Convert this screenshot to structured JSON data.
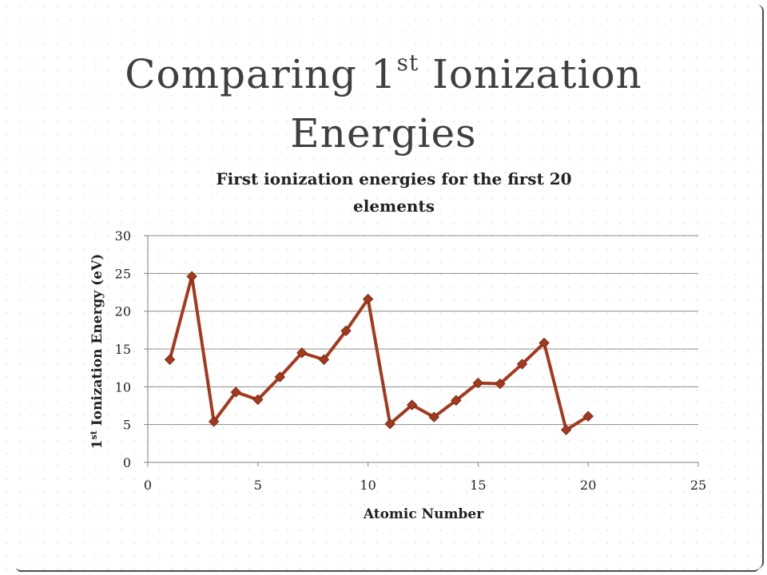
{
  "slide": {
    "title_line1_pre": "Comparing 1",
    "title_line1_sup": "st",
    "title_line1_post": " Ionization",
    "title_line2": "Energies"
  },
  "chart_data": {
    "type": "scatter",
    "title": "First ionization energies for the first 20 elements",
    "xlabel": "Atomic Number",
    "ylabel_pre": "1",
    "ylabel_sup": "st",
    "ylabel_post": " Ionization Energy (eV)",
    "xlim": [
      0,
      25
    ],
    "ylim": [
      0,
      30
    ],
    "x_ticks": [
      0,
      5,
      10,
      15,
      20,
      25
    ],
    "y_ticks": [
      0,
      5,
      10,
      15,
      20,
      25,
      30
    ],
    "grid": "horizontal",
    "marker": "diamond",
    "line": "straight",
    "series_color": "#A33A1E",
    "series": [
      {
        "x": [
          1,
          2,
          3,
          4,
          5,
          6,
          7,
          8,
          9,
          10,
          11,
          12,
          13,
          14,
          15,
          16,
          17,
          18,
          19,
          20
        ],
        "y": [
          13.6,
          24.6,
          5.4,
          9.3,
          8.3,
          11.3,
          14.5,
          13.6,
          17.4,
          21.6,
          5.1,
          7.6,
          6.0,
          8.2,
          10.5,
          10.4,
          13.0,
          15.8,
          4.3,
          6.1
        ]
      }
    ]
  }
}
